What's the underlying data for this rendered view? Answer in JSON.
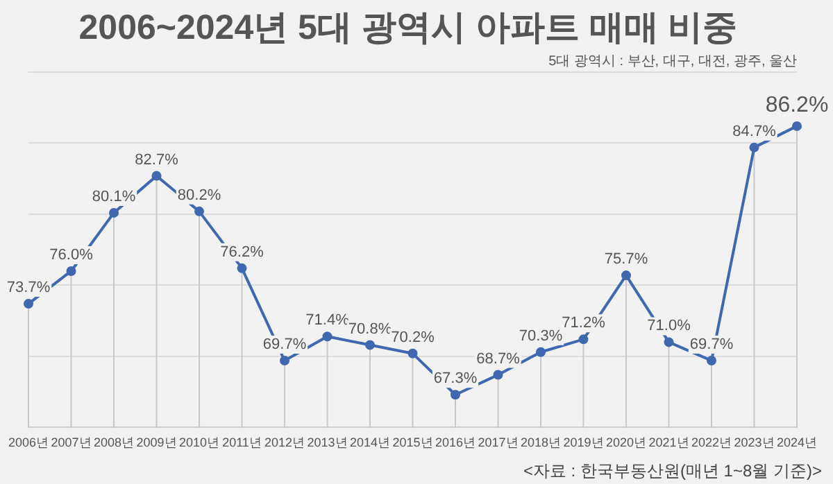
{
  "chart_data": {
    "type": "line",
    "title": "2006~2024년 5대 광역시 아파트 매매 비중",
    "subtitle": "5대 광역시 : 부산, 대구, 대전, 광주, 울산",
    "categories": [
      "2006년",
      "2007년",
      "2008년",
      "2009년",
      "2010년",
      "2011년",
      "2012년",
      "2013년",
      "2014년",
      "2015년",
      "2016년",
      "2017년",
      "2018년",
      "2019년",
      "2020년",
      "2021년",
      "2022년",
      "2023년",
      "2024년"
    ],
    "series": [
      {
        "color": "#3f68b0",
        "values": [
          73.7,
          76.0,
          80.1,
          82.7,
          80.2,
          76.2,
          69.7,
          71.4,
          70.8,
          70.2,
          67.3,
          68.7,
          70.3,
          71.2,
          75.7,
          71.0,
          69.7,
          84.7,
          86.2
        ],
        "value_labels": [
          "73.7%",
          "76.0%",
          "80.1%",
          "82.7%",
          "80.2%",
          "76.2%",
          "69.7%",
          "71.4%",
          "70.8%",
          "70.2%",
          "67.3%",
          "68.7%",
          "70.3%",
          "71.2%",
          "75.7%",
          "71.0%",
          "69.7%",
          "84.7%",
          "86.2%"
        ]
      }
    ],
    "tick_labels": "x",
    "grid": true,
    "marker": "circle",
    "line_style": "solid",
    "legend": false,
    "annotations": [
      "<자료 : 한국부동산원(매년 1~8월 기준)>"
    ]
  }
}
